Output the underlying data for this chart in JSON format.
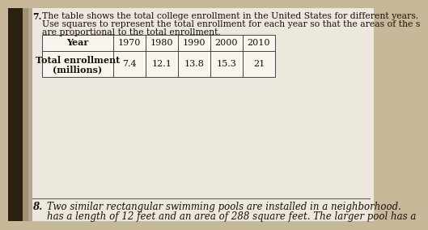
{
  "question7_label": "7.",
  "question7_text_line1": "The table shows the total college enrollment in the United States for different years.",
  "question7_text_line2": "Use squares to represent the total enrollment for each year so that the areas of the s",
  "question7_text_line3": "are proportional to the total enrollment.",
  "col_header": [
    "Year",
    "1970",
    "1980",
    "1990",
    "2000",
    "2010"
  ],
  "row1_label_line1": "Total enrollment",
  "row1_label_line2": "(millions)",
  "row1_values": [
    "7.4",
    "12.1",
    "13.8",
    "15.3",
    "21"
  ],
  "question8_label": "8.",
  "question8_text_line1": "Two similar rectangular swimming pools are installed in a neighborhood.",
  "question8_text_line2": "has a length of 12 feet and an area of 288 square feet. The larger pool has a",
  "dark_left_color": "#2a2010",
  "shadow_color": "#7a6a50",
  "bg_color": "#c8b89a",
  "paper_color": "#ede8de",
  "text_color": "#1a1008",
  "table_line_color": "#444444",
  "divider_color": "#666655",
  "fs_q7": 7.8,
  "fs_table_header": 8.0,
  "fs_table_body": 8.0,
  "fs_q8": 8.5
}
